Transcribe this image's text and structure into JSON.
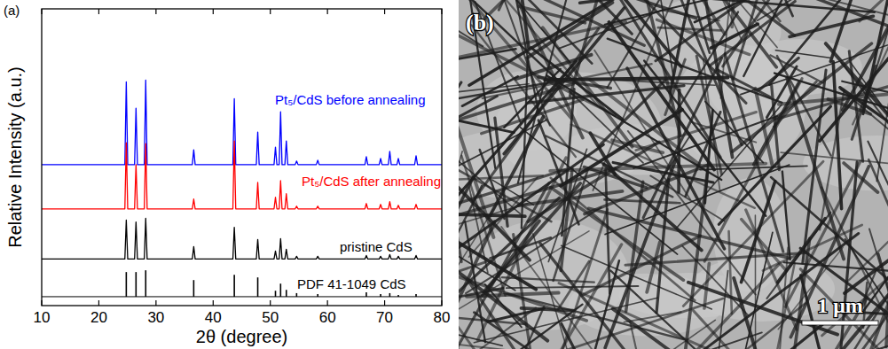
{
  "chart_data": {
    "type": "line",
    "panel_label": "(a)",
    "x_label": "2θ (degree)",
    "y_label": "Relative Intensity (a.u.)",
    "xlim": [
      10,
      80
    ],
    "xticks": [
      10,
      20,
      30,
      40,
      50,
      60,
      70,
      80
    ],
    "ylim": [
      0,
      100
    ],
    "yticks": [],
    "tick_labels": "x",
    "x": [
      10,
      24.55,
      24.8,
      25.05,
      26.25,
      26.5,
      26.75,
      27.95,
      28.2,
      28.45,
      36.35,
      36.6,
      36.85,
      43.45,
      43.7,
      43.95,
      47.55,
      47.8,
      48.05,
      50.65,
      50.9,
      51.15,
      51.55,
      51.8,
      52.05,
      52.55,
      52.8,
      53.05,
      54.35,
      54.6,
      54.85,
      58.05,
      58.3,
      58.55,
      66.55,
      66.8,
      67.05,
      69.05,
      69.3,
      69.55,
      70.65,
      70.9,
      71.15,
      72.15,
      72.4,
      72.65,
      75.25,
      75.5,
      75.75,
      80
    ],
    "series": [
      {
        "name": "Pt₅/CdS before annealing",
        "color": "#0000ff",
        "values": [
          47.5,
          47.5,
          75.4,
          47.5,
          47.5,
          66.5,
          47.5,
          47.5,
          76,
          47.5,
          47.5,
          52.5,
          47.5,
          47.5,
          69.7,
          47.5,
          47.5,
          58.5,
          47.5,
          47.5,
          53.4,
          47.5,
          47.5,
          65.3,
          47.5,
          47.5,
          55.5,
          47.5,
          47.5,
          48.7,
          47.5,
          47.5,
          49,
          47.5,
          47.5,
          50.2,
          47.5,
          47.5,
          49.6,
          47.5,
          47.5,
          52,
          47.5,
          47.5,
          49.6,
          47.5,
          47.5,
          50.5,
          47.5,
          47.5
        ]
      },
      {
        "name": "Pt₅/CdS after annealing",
        "color": "#ff0000",
        "values": [
          32.6,
          32.6,
          54.9,
          32.6,
          32.6,
          47.5,
          32.6,
          32.6,
          54.6,
          32.6,
          32.6,
          35.9,
          32.6,
          32.6,
          55.5,
          32.6,
          32.6,
          41.5,
          32.6,
          32.6,
          36.5,
          32.6,
          32.6,
          42.1,
          32.6,
          32.6,
          37.7,
          32.6,
          32.6,
          33.5,
          32.6,
          32.6,
          33.5,
          32.6,
          32.6,
          34.4,
          32.6,
          32.6,
          34.1,
          32.6,
          32.6,
          35,
          32.6,
          32.6,
          33.8,
          32.6,
          32.6,
          34.1,
          32.6,
          32.6
        ]
      },
      {
        "name": "pristine CdS",
        "color": "#000000",
        "values": [
          15.7,
          15.7,
          28.8,
          15.7,
          15.7,
          28.2,
          15.7,
          15.7,
          29.4,
          15.7,
          15.7,
          19.9,
          15.7,
          15.7,
          26.4,
          15.7,
          15.7,
          22.3,
          15.7,
          15.7,
          18.4,
          15.7,
          15.7,
          22.6,
          15.7,
          15.7,
          19,
          15.7,
          15.7,
          16.6,
          15.7,
          15.7,
          16.6,
          15.7,
          15.7,
          16.9,
          15.7,
          15.7,
          16.6,
          15.7,
          15.7,
          17.2,
          15.7,
          15.7,
          16.6,
          15.7,
          15.7,
          16.9,
          15.7,
          15.7
        ]
      },
      {
        "name": "PDF 41-1049  CdS",
        "type": "bar",
        "color": "#000000",
        "base": 3,
        "x": [
          24.8,
          26.5,
          28.2,
          36.6,
          43.7,
          47.8,
          50.9,
          51.8,
          52.8,
          54.6,
          58.3,
          66.8,
          69.3,
          70.9,
          72.4,
          75.5
        ],
        "values": [
          11.3,
          11.3,
          11.9,
          8.6,
          10.4,
          9.5,
          5,
          7.4,
          5.3,
          4.2,
          3.9,
          4.5,
          3.9,
          4.2,
          3.6,
          3.9
        ]
      }
    ]
  },
  "image": {
    "label": "(b)",
    "scale_bar": "1 μm"
  }
}
